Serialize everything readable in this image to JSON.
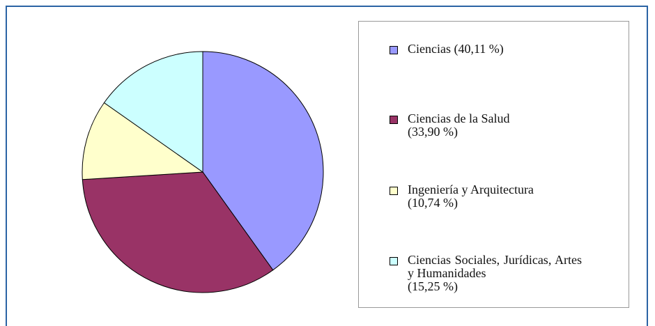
{
  "chart_data": {
    "type": "pie",
    "categories": [
      "Ciencias",
      "Ciencias de la Salud",
      "Ingeniería y Arquitectura",
      "Ciencias Sociales, Jurídicas, Artes y Humanidades"
    ],
    "values": [
      40.11,
      33.9,
      10.74,
      15.25
    ],
    "value_labels": [
      "(40,11 %)",
      "(33,90 %)",
      "(10,74 %)",
      "(15,25 %)"
    ],
    "colors": [
      "#9999ff",
      "#993366",
      "#ffffcc",
      "#ccffff"
    ],
    "legend": "right"
  }
}
